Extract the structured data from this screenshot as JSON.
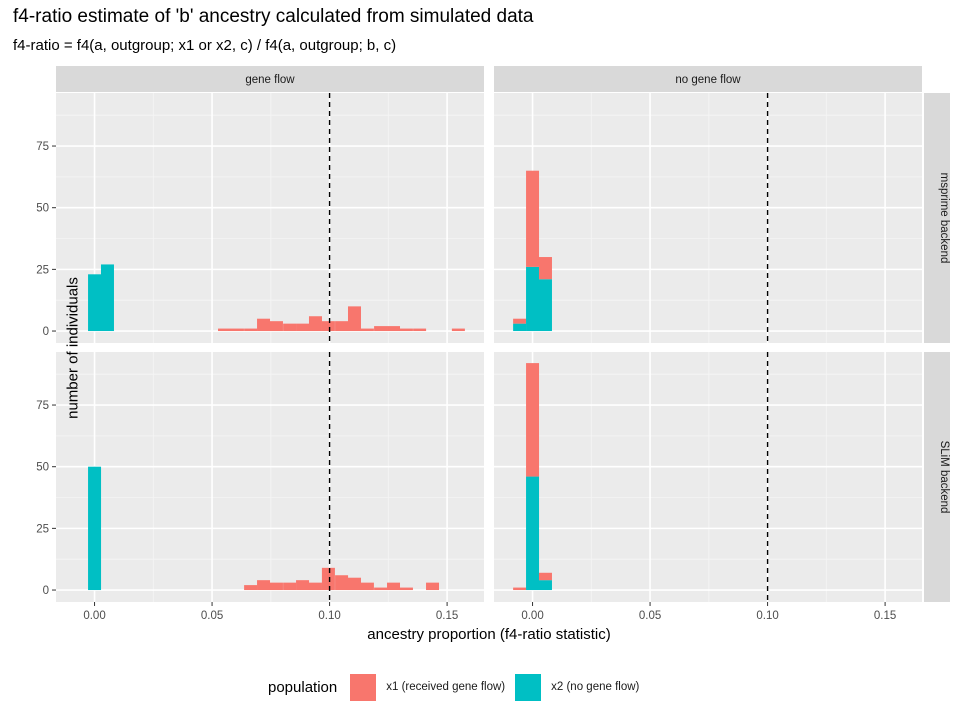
{
  "chart_data": {
    "type": "bar",
    "subtype": "stacked histogram (faceted)",
    "title": "f4-ratio estimate of 'b' ancestry calculated from simulated data",
    "subtitle": "f4-ratio = f4(a, outgroup; x1 or x2, c) / f4(a, outgroup; b, c)",
    "xlabel": "ancestry proportion (f4-ratio statistic)",
    "ylabel": "number of individuals",
    "xlim": [
      -0.0164,
      0.1657
    ],
    "ylim": [
      -4.85,
      96.5
    ],
    "xticks": [
      0.0,
      0.05,
      0.1,
      0.15
    ],
    "xtick_labels": [
      "0.00",
      "0.05",
      "0.10",
      "0.15"
    ],
    "yticks": [
      0,
      25,
      50,
      75
    ],
    "ytick_labels": [
      "0",
      "25",
      "50",
      "75"
    ],
    "bin_width": 0.00553,
    "reference_line": {
      "x": 0.1,
      "style": "dashed",
      "color": "#000000"
    },
    "grid": true,
    "legend": {
      "title": "population",
      "position": "bottom",
      "entries": [
        {
          "key": "x1",
          "label": "x1 (received gene flow)",
          "color": "#F8766D"
        },
        {
          "key": "x2",
          "label": "x2 (no gene flow)",
          "color": "#00BFC4"
        }
      ]
    },
    "facet_cols": [
      "gene flow",
      "no gene flow"
    ],
    "facet_rows": [
      "msprime backend",
      "SLiM backend"
    ],
    "panels": [
      {
        "col": "gene flow",
        "row": "msprime backend",
        "bins": [
          {
            "x": -0.0,
            "x1": 0,
            "x2": 23
          },
          {
            "x": 0.0055,
            "x1": 0,
            "x2": 27
          },
          {
            "x": 0.0553,
            "x1": 1,
            "x2": 0
          },
          {
            "x": 0.0608,
            "x1": 1,
            "x2": 0
          },
          {
            "x": 0.0664,
            "x1": 1,
            "x2": 0
          },
          {
            "x": 0.0719,
            "x1": 5,
            "x2": 0
          },
          {
            "x": 0.0774,
            "x1": 4,
            "x2": 0
          },
          {
            "x": 0.083,
            "x1": 3,
            "x2": 0
          },
          {
            "x": 0.0885,
            "x1": 3,
            "x2": 0
          },
          {
            "x": 0.094,
            "x1": 6,
            "x2": 0
          },
          {
            "x": 0.0995,
            "x1": 4,
            "x2": 0
          },
          {
            "x": 0.1051,
            "x1": 4,
            "x2": 0
          },
          {
            "x": 0.1106,
            "x1": 10,
            "x2": 0
          },
          {
            "x": 0.1161,
            "x1": 1,
            "x2": 0
          },
          {
            "x": 0.1217,
            "x1": 2,
            "x2": 0
          },
          {
            "x": 0.1272,
            "x1": 2,
            "x2": 0
          },
          {
            "x": 0.1327,
            "x1": 1,
            "x2": 0
          },
          {
            "x": 0.1383,
            "x1": 1,
            "x2": 0
          },
          {
            "x": 0.1548,
            "x1": 1,
            "x2": 0
          }
        ]
      },
      {
        "col": "no gene flow",
        "row": "msprime backend",
        "bins": [
          {
            "x": -0.0055,
            "x1": 2,
            "x2": 3
          },
          {
            "x": 0.0,
            "x1": 39,
            "x2": 26
          },
          {
            "x": 0.0055,
            "x1": 9,
            "x2": 21
          }
        ]
      },
      {
        "col": "gene flow",
        "row": "SLiM backend",
        "bins": [
          {
            "x": 0.0,
            "x1": 0,
            "x2": 50
          },
          {
            "x": 0.0664,
            "x1": 2,
            "x2": 0
          },
          {
            "x": 0.0719,
            "x1": 4,
            "x2": 0
          },
          {
            "x": 0.0774,
            "x1": 3,
            "x2": 0
          },
          {
            "x": 0.083,
            "x1": 3,
            "x2": 0
          },
          {
            "x": 0.0885,
            "x1": 4,
            "x2": 0
          },
          {
            "x": 0.094,
            "x1": 3,
            "x2": 0
          },
          {
            "x": 0.0995,
            "x1": 9,
            "x2": 0
          },
          {
            "x": 0.1051,
            "x1": 6,
            "x2": 0
          },
          {
            "x": 0.1106,
            "x1": 5,
            "x2": 0
          },
          {
            "x": 0.1161,
            "x1": 3,
            "x2": 0
          },
          {
            "x": 0.1217,
            "x1": 1,
            "x2": 0
          },
          {
            "x": 0.1272,
            "x1": 3,
            "x2": 0
          },
          {
            "x": 0.1327,
            "x1": 1,
            "x2": 0
          },
          {
            "x": 0.1438,
            "x1": 3,
            "x2": 0
          }
        ]
      },
      {
        "col": "no gene flow",
        "row": "SLiM backend",
        "bins": [
          {
            "x": -0.0055,
            "x1": 1,
            "x2": 0
          },
          {
            "x": 0.0,
            "x1": 46,
            "x2": 46
          },
          {
            "x": 0.0055,
            "x1": 3,
            "x2": 4
          }
        ]
      }
    ]
  }
}
